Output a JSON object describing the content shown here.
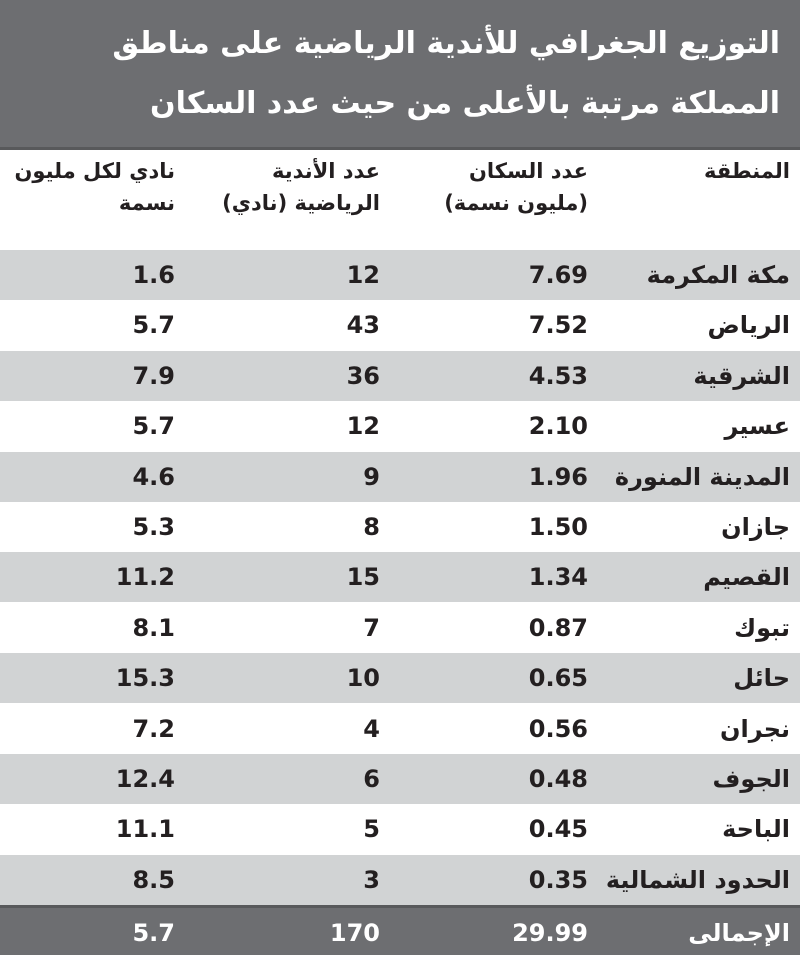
{
  "title": {
    "line1": "التوزيع الجغرافي للأندية الرياضية على مناطق",
    "line2": "المملكة مرتبة  بالأعلى من حيث عدد السكان"
  },
  "table": {
    "headers": {
      "region": "المنطقة",
      "population_1": "عدد السكان",
      "population_2": "(مليون نسمة)",
      "clubs_1": "عدد الأندية",
      "clubs_2": "الرياضية (نادي)",
      "per_million_1": "نادي لكل مليون",
      "per_million_2": "نسمة"
    },
    "rows": [
      {
        "region": "مكة المكرمة",
        "population": "7.69",
        "clubs": "12",
        "per_million": "1.6"
      },
      {
        "region": "الرياض",
        "population": "7.52",
        "clubs": "43",
        "per_million": "5.7"
      },
      {
        "region": "الشرقية",
        "population": "4.53",
        "clubs": "36",
        "per_million": "7.9"
      },
      {
        "region": "عسير",
        "population": "2.10",
        "clubs": "12",
        "per_million": "5.7"
      },
      {
        "region": "المدينة المنورة",
        "population": "1.96",
        "clubs": "9",
        "per_million": "4.6"
      },
      {
        "region": "جازان",
        "population": "1.50",
        "clubs": "8",
        "per_million": "5.3"
      },
      {
        "region": "القصيم",
        "population": "1.34",
        "clubs": "15",
        "per_million": "11.2"
      },
      {
        "region": "تبوك",
        "population": "0.87",
        "clubs": "7",
        "per_million": "8.1"
      },
      {
        "region": "حائل",
        "population": "0.65",
        "clubs": "10",
        "per_million": "15.3"
      },
      {
        "region": "نجران",
        "population": "0.56",
        "clubs": "4",
        "per_million": "7.2"
      },
      {
        "region": "الجوف",
        "population": "0.48",
        "clubs": "6",
        "per_million": "12.4"
      },
      {
        "region": "الباحة",
        "population": "0.45",
        "clubs": "5",
        "per_million": "11.1"
      },
      {
        "region": "الحدود الشمالية",
        "population": "0.35",
        "clubs": "3",
        "per_million": "8.5"
      }
    ],
    "total": {
      "region": "الإجمالى",
      "population": "29.99",
      "clubs": "170",
      "per_million": "5.7"
    }
  },
  "colors": {
    "band": "#6d6e71",
    "stripe": "#d1d3d4",
    "text": "#231f20"
  }
}
